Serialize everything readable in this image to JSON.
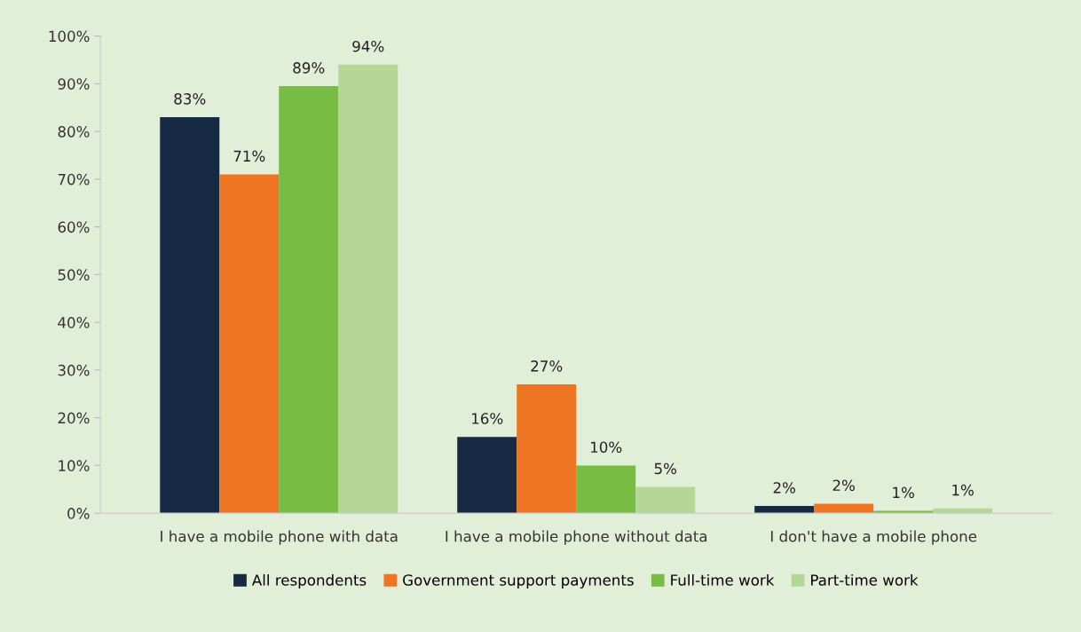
{
  "chart_data": {
    "type": "bar",
    "categories": [
      "I have a mobile phone with data",
      "I have a mobile phone without data",
      "I don't have a mobile phone"
    ],
    "series": [
      {
        "name": "All respondents",
        "color": "#172a43",
        "values": [
          83,
          16,
          1.5
        ],
        "value_labels": [
          "83%",
          "16%",
          "2%"
        ]
      },
      {
        "name": "Government support payments",
        "color": "#ee7623",
        "values": [
          71,
          27,
          2
        ],
        "value_labels": [
          "71%",
          "27%",
          "2%"
        ]
      },
      {
        "name": "Full-time work",
        "color": "#77bc43",
        "values": [
          89.5,
          10,
          0.5
        ],
        "value_labels": [
          "89%",
          "10%",
          "1%"
        ]
      },
      {
        "name": "Part-time work",
        "color": "#b4d795",
        "values": [
          94,
          5.5,
          1
        ],
        "value_labels": [
          "94%",
          "5%",
          "1%"
        ]
      }
    ],
    "ylim": [
      0,
      100
    ],
    "yticks": [
      {
        "value": 0,
        "label": "0%"
      },
      {
        "value": 10,
        "label": "10%"
      },
      {
        "value": 20,
        "label": "20%"
      },
      {
        "value": 30,
        "label": "30%"
      },
      {
        "value": 40,
        "label": "40%"
      },
      {
        "value": 50,
        "label": "50%"
      },
      {
        "value": 60,
        "label": "60%"
      },
      {
        "value": 70,
        "label": "70%"
      },
      {
        "value": 80,
        "label": "80%"
      },
      {
        "value": 90,
        "label": "90%"
      },
      {
        "value": 100,
        "label": "100%"
      }
    ],
    "grid": false,
    "legend": "bottom"
  }
}
